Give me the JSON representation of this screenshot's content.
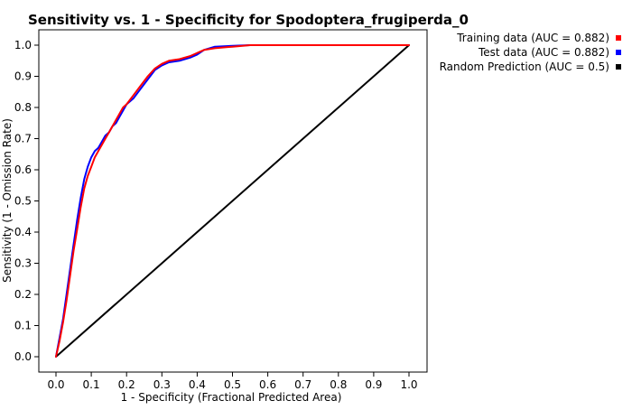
{
  "chart_data": {
    "type": "line",
    "title": "Sensitivity vs. 1 - Specificity for Spodoptera_frugiperda_0",
    "xlabel": "1 - Specificity  (Fractional Predicted Area)",
    "ylabel": "Sensitivity  (1 - Omission Rate)",
    "xlim": [
      0,
      1
    ],
    "ylim": [
      0,
      1
    ],
    "x_ticks": [
      "0.0",
      "0.1",
      "0.2",
      "0.3",
      "0.4",
      "0.5",
      "0.6",
      "0.7",
      "0.8",
      "0.9",
      "1.0"
    ],
    "y_ticks": [
      "0.0",
      "0.1",
      "0.2",
      "0.3",
      "0.4",
      "0.5",
      "0.6",
      "0.7",
      "0.8",
      "0.9",
      "1.0"
    ],
    "grid": false,
    "legend_position": "top-right outside",
    "series": [
      {
        "name": "Training data (AUC = 0.882)",
        "color": "#ff0000",
        "x": [
          0.0,
          0.01,
          0.02,
          0.03,
          0.04,
          0.05,
          0.06,
          0.07,
          0.08,
          0.09,
          0.1,
          0.11,
          0.12,
          0.13,
          0.14,
          0.15,
          0.16,
          0.17,
          0.18,
          0.19,
          0.2,
          0.22,
          0.24,
          0.26,
          0.28,
          0.3,
          0.32,
          0.35,
          0.38,
          0.4,
          0.42,
          0.45,
          0.5,
          0.55,
          0.6,
          0.7,
          0.8,
          0.9,
          1.0
        ],
        "y": [
          0.0,
          0.05,
          0.11,
          0.18,
          0.26,
          0.34,
          0.41,
          0.48,
          0.54,
          0.58,
          0.61,
          0.64,
          0.66,
          0.68,
          0.7,
          0.72,
          0.74,
          0.76,
          0.78,
          0.8,
          0.81,
          0.84,
          0.87,
          0.9,
          0.925,
          0.94,
          0.95,
          0.955,
          0.965,
          0.975,
          0.985,
          0.99,
          0.995,
          1.0,
          1.0,
          1.0,
          1.0,
          1.0,
          1.0
        ]
      },
      {
        "name": "Test data (AUC = 0.882)",
        "color": "#0000ff",
        "x": [
          0.0,
          0.01,
          0.02,
          0.03,
          0.04,
          0.05,
          0.06,
          0.07,
          0.08,
          0.09,
          0.1,
          0.11,
          0.12,
          0.13,
          0.14,
          0.15,
          0.16,
          0.17,
          0.18,
          0.19,
          0.2,
          0.22,
          0.24,
          0.26,
          0.28,
          0.3,
          0.32,
          0.35,
          0.38,
          0.4,
          0.42,
          0.45,
          0.5,
          0.55,
          0.6,
          0.7,
          0.8,
          0.9,
          1.0
        ],
        "y": [
          0.0,
          0.06,
          0.12,
          0.2,
          0.28,
          0.36,
          0.44,
          0.51,
          0.57,
          0.61,
          0.64,
          0.66,
          0.67,
          0.69,
          0.71,
          0.72,
          0.74,
          0.75,
          0.77,
          0.79,
          0.81,
          0.83,
          0.86,
          0.89,
          0.92,
          0.935,
          0.945,
          0.95,
          0.96,
          0.97,
          0.985,
          0.995,
          0.998,
          1.0,
          1.0,
          1.0,
          1.0,
          1.0,
          1.0
        ]
      },
      {
        "name": "Random Prediction (AUC = 0.5)",
        "color": "#000000",
        "x": [
          0.0,
          1.0
        ],
        "y": [
          0.0,
          1.0
        ]
      }
    ]
  }
}
